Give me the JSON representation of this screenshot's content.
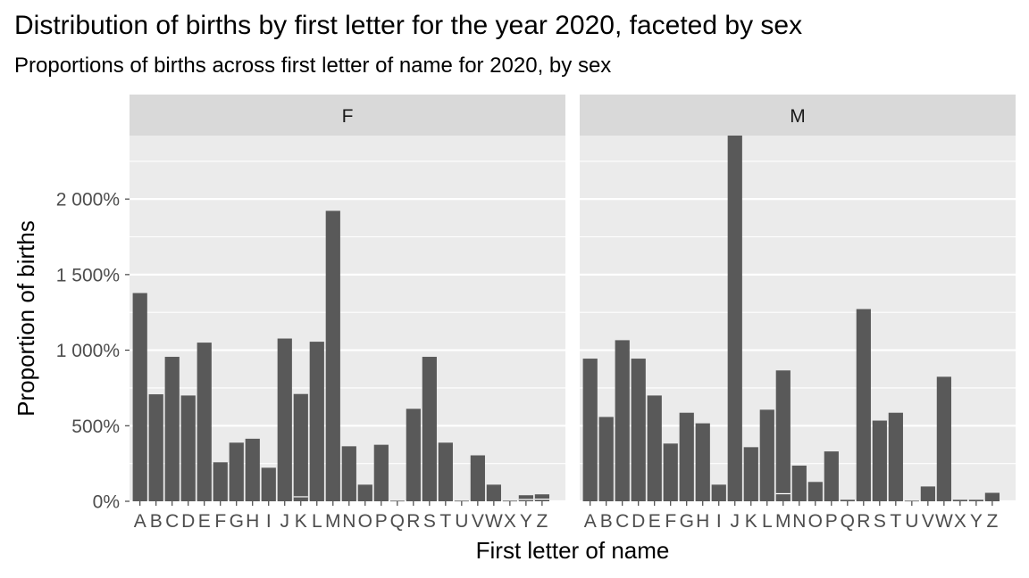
{
  "chart_data": {
    "type": "bar",
    "title": "Distribution of births by first letter for the year 2020, faceted by sex",
    "subtitle": "Proportions of births across first letter of name for 2020, by sex",
    "xlabel": "First letter of name",
    "ylabel": "Proportion of births",
    "ylim": [
      0,
      2420
    ],
    "y_ticks": [
      0,
      500,
      1000,
      1500,
      2000
    ],
    "y_tick_labels": [
      "0%",
      "500%",
      "1 000%",
      "1 500%",
      "2 000%"
    ],
    "grid": true,
    "categories": [
      "A",
      "B",
      "C",
      "D",
      "E",
      "F",
      "G",
      "H",
      "I",
      "J",
      "K",
      "L",
      "M",
      "N",
      "O",
      "P",
      "Q",
      "R",
      "S",
      "T",
      "U",
      "V",
      "W",
      "X",
      "Y",
      "Z"
    ],
    "bar_color": "#595959",
    "panel_bg": "#ebebeb",
    "strip_bg": "#d9d9d9",
    "facets": [
      {
        "name": "F",
        "values": [
          1378,
          708,
          956,
          700,
          1050,
          258,
          388,
          414,
          222,
          1077,
          710,
          1056,
          1922,
          364,
          110,
          374,
          4,
          612,
          956,
          388,
          4,
          304,
          110,
          4,
          40,
          46
        ],
        "inner_segments": {
          "K": 30,
          "Y": 12,
          "Z": 14
        }
      },
      {
        "name": "M",
        "values": [
          944,
          558,
          1066,
          944,
          700,
          382,
          586,
          516,
          110,
          2420,
          358,
          606,
          866,
          236,
          128,
          330,
          10,
          1272,
          534,
          586,
          4,
          98,
          824,
          10,
          10,
          56
        ],
        "inner_segments": {
          "M": 50
        }
      }
    ]
  }
}
